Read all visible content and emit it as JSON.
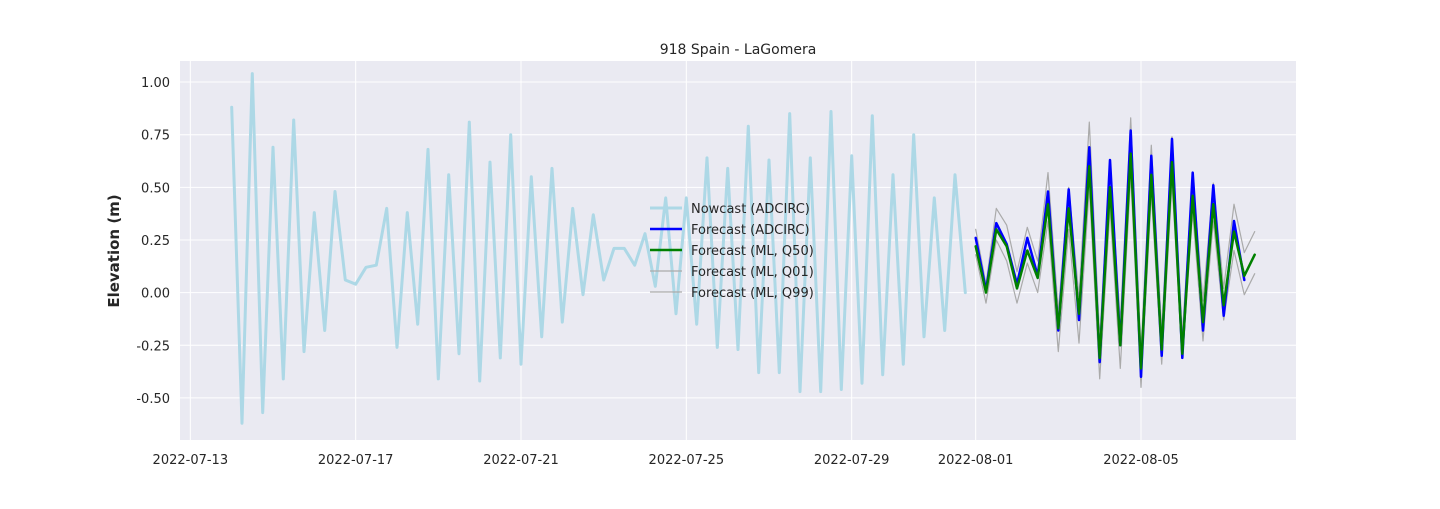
{
  "chart_data": {
    "type": "line",
    "title": "918 Spain - LaGomera",
    "xlabel": "",
    "ylabel": "Elevation (m)",
    "x_ticks": [
      "2022-07-13",
      "2022-07-17",
      "2022-07-21",
      "2022-07-25",
      "2022-07-29",
      "2022-08-01",
      "2022-08-05"
    ],
    "y_ticks": [
      "-0.50",
      "-0.25",
      "0.00",
      "0.25",
      "0.50",
      "0.75",
      "1.00"
    ],
    "xlim": [
      "2022-07-12T18:00",
      "2022-08-08T18:00"
    ],
    "ylim": [
      -0.7,
      1.1
    ],
    "grid": true,
    "legend_position": "center",
    "series": [
      {
        "name": "Nowcast (ADCIRC)",
        "color": "#add8e6",
        "values": [
          [
            "2022-07-14T00:00",
            0.88
          ],
          [
            "2022-07-14T06:00",
            -0.62
          ],
          [
            "2022-07-14T12:00",
            1.04
          ],
          [
            "2022-07-14T18:00",
            -0.57
          ],
          [
            "2022-07-15T00:00",
            0.69
          ],
          [
            "2022-07-15T06:00",
            -0.41
          ],
          [
            "2022-07-15T12:00",
            0.82
          ],
          [
            "2022-07-15T18:00",
            -0.28
          ],
          [
            "2022-07-16T00:00",
            0.38
          ],
          [
            "2022-07-16T06:00",
            -0.18
          ],
          [
            "2022-07-16T12:00",
            0.48
          ],
          [
            "2022-07-16T18:00",
            0.06
          ],
          [
            "2022-07-17T00:00",
            0.04
          ],
          [
            "2022-07-17T06:00",
            0.12
          ],
          [
            "2022-07-17T12:00",
            0.13
          ],
          [
            "2022-07-17T18:00",
            0.4
          ],
          [
            "2022-07-18T00:00",
            -0.26
          ],
          [
            "2022-07-18T06:00",
            0.38
          ],
          [
            "2022-07-18T12:00",
            -0.15
          ],
          [
            "2022-07-18T18:00",
            0.68
          ],
          [
            "2022-07-19T00:00",
            -0.41
          ],
          [
            "2022-07-19T06:00",
            0.56
          ],
          [
            "2022-07-19T12:00",
            -0.29
          ],
          [
            "2022-07-19T18:00",
            0.81
          ],
          [
            "2022-07-20T00:00",
            -0.42
          ],
          [
            "2022-07-20T06:00",
            0.62
          ],
          [
            "2022-07-20T12:00",
            -0.31
          ],
          [
            "2022-07-20T18:00",
            0.75
          ],
          [
            "2022-07-21T00:00",
            -0.34
          ],
          [
            "2022-07-21T06:00",
            0.55
          ],
          [
            "2022-07-21T12:00",
            -0.21
          ],
          [
            "2022-07-21T18:00",
            0.59
          ],
          [
            "2022-07-22T00:00",
            -0.14
          ],
          [
            "2022-07-22T06:00",
            0.4
          ],
          [
            "2022-07-22T12:00",
            -0.01
          ],
          [
            "2022-07-22T18:00",
            0.37
          ],
          [
            "2022-07-23T00:00",
            0.06
          ],
          [
            "2022-07-23T06:00",
            0.21
          ],
          [
            "2022-07-23T12:00",
            0.21
          ],
          [
            "2022-07-23T18:00",
            0.13
          ],
          [
            "2022-07-24T00:00",
            0.28
          ],
          [
            "2022-07-24T06:00",
            0.03
          ],
          [
            "2022-07-24T12:00",
            0.45
          ],
          [
            "2022-07-24T18:00",
            -0.1
          ],
          [
            "2022-07-25T00:00",
            0.45
          ],
          [
            "2022-07-25T06:00",
            -0.15
          ],
          [
            "2022-07-25T12:00",
            0.64
          ],
          [
            "2022-07-25T18:00",
            -0.26
          ],
          [
            "2022-07-26T00:00",
            0.59
          ],
          [
            "2022-07-26T06:00",
            -0.27
          ],
          [
            "2022-07-26T12:00",
            0.79
          ],
          [
            "2022-07-26T18:00",
            -0.38
          ],
          [
            "2022-07-27T00:00",
            0.63
          ],
          [
            "2022-07-27T06:00",
            -0.38
          ],
          [
            "2022-07-27T12:00",
            0.85
          ],
          [
            "2022-07-27T18:00",
            -0.47
          ],
          [
            "2022-07-28T00:00",
            0.64
          ],
          [
            "2022-07-28T06:00",
            -0.47
          ],
          [
            "2022-07-28T12:00",
            0.86
          ],
          [
            "2022-07-28T18:00",
            -0.46
          ],
          [
            "2022-07-29T00:00",
            0.65
          ],
          [
            "2022-07-29T06:00",
            -0.43
          ],
          [
            "2022-07-29T12:00",
            0.84
          ],
          [
            "2022-07-29T18:00",
            -0.39
          ],
          [
            "2022-07-30T00:00",
            0.56
          ],
          [
            "2022-07-30T06:00",
            -0.34
          ],
          [
            "2022-07-30T12:00",
            0.75
          ],
          [
            "2022-07-30T18:00",
            -0.21
          ],
          [
            "2022-07-31T00:00",
            0.45
          ],
          [
            "2022-07-31T06:00",
            -0.18
          ],
          [
            "2022-07-31T12:00",
            0.56
          ],
          [
            "2022-07-31T18:00",
            0.0
          ]
        ]
      },
      {
        "name": "Forecast (ADCIRC)",
        "color": "#0000ff",
        "values": [
          [
            "2022-08-01T00:00",
            0.26
          ],
          [
            "2022-08-01T06:00",
            0.01
          ],
          [
            "2022-08-01T12:00",
            0.33
          ],
          [
            "2022-08-01T18:00",
            0.23
          ],
          [
            "2022-08-02T00:00",
            0.04
          ],
          [
            "2022-08-02T06:00",
            0.26
          ],
          [
            "2022-08-02T12:00",
            0.08
          ],
          [
            "2022-08-02T18:00",
            0.48
          ],
          [
            "2022-08-03T00:00",
            -0.18
          ],
          [
            "2022-08-03T06:00",
            0.49
          ],
          [
            "2022-08-03T12:00",
            -0.13
          ],
          [
            "2022-08-03T18:00",
            0.69
          ],
          [
            "2022-08-04T00:00",
            -0.33
          ],
          [
            "2022-08-04T06:00",
            0.63
          ],
          [
            "2022-08-04T12:00",
            -0.25
          ],
          [
            "2022-08-04T18:00",
            0.77
          ],
          [
            "2022-08-05T00:00",
            -0.4
          ],
          [
            "2022-08-05T06:00",
            0.65
          ],
          [
            "2022-08-05T12:00",
            -0.3
          ],
          [
            "2022-08-05T18:00",
            0.73
          ],
          [
            "2022-08-06T00:00",
            -0.31
          ],
          [
            "2022-08-06T06:00",
            0.57
          ],
          [
            "2022-08-06T12:00",
            -0.18
          ],
          [
            "2022-08-06T18:00",
            0.51
          ],
          [
            "2022-08-07T00:00",
            -0.11
          ],
          [
            "2022-08-07T06:00",
            0.34
          ],
          [
            "2022-08-07T12:00",
            0.06
          ]
        ]
      },
      {
        "name": "Forecast (ML, Q50)",
        "color": "#008000",
        "values": [
          [
            "2022-08-01T00:00",
            0.22
          ],
          [
            "2022-08-01T06:00",
            0.0
          ],
          [
            "2022-08-01T12:00",
            0.3
          ],
          [
            "2022-08-01T18:00",
            0.22
          ],
          [
            "2022-08-02T00:00",
            0.02
          ],
          [
            "2022-08-02T06:00",
            0.2
          ],
          [
            "2022-08-02T12:00",
            0.07
          ],
          [
            "2022-08-02T18:00",
            0.42
          ],
          [
            "2022-08-03T00:00",
            -0.17
          ],
          [
            "2022-08-03T06:00",
            0.4
          ],
          [
            "2022-08-03T12:00",
            -0.1
          ],
          [
            "2022-08-03T18:00",
            0.6
          ],
          [
            "2022-08-04T00:00",
            -0.31
          ],
          [
            "2022-08-04T06:00",
            0.5
          ],
          [
            "2022-08-04T12:00",
            -0.25
          ],
          [
            "2022-08-04T18:00",
            0.66
          ],
          [
            "2022-08-05T00:00",
            -0.36
          ],
          [
            "2022-08-05T06:00",
            0.56
          ],
          [
            "2022-08-05T12:00",
            -0.27
          ],
          [
            "2022-08-05T18:00",
            0.62
          ],
          [
            "2022-08-06T00:00",
            -0.29
          ],
          [
            "2022-08-06T06:00",
            0.46
          ],
          [
            "2022-08-06T12:00",
            -0.14
          ],
          [
            "2022-08-06T18:00",
            0.42
          ],
          [
            "2022-08-07T00:00",
            -0.06
          ],
          [
            "2022-08-07T06:00",
            0.29
          ],
          [
            "2022-08-07T12:00",
            0.08
          ],
          [
            "2022-08-07T18:00",
            0.18
          ]
        ]
      },
      {
        "name": "Forecast (ML, Q01)",
        "color": "#aaaaaa",
        "values": [
          [
            "2022-08-01T00:00",
            0.18
          ],
          [
            "2022-08-01T06:00",
            -0.05
          ],
          [
            "2022-08-01T12:00",
            0.25
          ],
          [
            "2022-08-01T18:00",
            0.15
          ],
          [
            "2022-08-02T00:00",
            -0.05
          ],
          [
            "2022-08-02T06:00",
            0.14
          ],
          [
            "2022-08-02T12:00",
            0.0
          ],
          [
            "2022-08-02T18:00",
            0.34
          ],
          [
            "2022-08-03T00:00",
            -0.28
          ],
          [
            "2022-08-03T06:00",
            0.3
          ],
          [
            "2022-08-03T12:00",
            -0.24
          ],
          [
            "2022-08-03T18:00",
            0.5
          ],
          [
            "2022-08-04T00:00",
            -0.41
          ],
          [
            "2022-08-04T06:00",
            0.4
          ],
          [
            "2022-08-04T12:00",
            -0.36
          ],
          [
            "2022-08-04T18:00",
            0.56
          ],
          [
            "2022-08-05T00:00",
            -0.45
          ],
          [
            "2022-08-05T06:00",
            0.47
          ],
          [
            "2022-08-05T12:00",
            -0.34
          ],
          [
            "2022-08-05T18:00",
            0.52
          ],
          [
            "2022-08-06T00:00",
            -0.31
          ],
          [
            "2022-08-06T06:00",
            0.38
          ],
          [
            "2022-08-06T12:00",
            -0.23
          ],
          [
            "2022-08-06T18:00",
            0.34
          ],
          [
            "2022-08-07T00:00",
            -0.13
          ],
          [
            "2022-08-07T06:00",
            0.2
          ],
          [
            "2022-08-07T12:00",
            -0.01
          ],
          [
            "2022-08-07T18:00",
            0.09
          ]
        ]
      },
      {
        "name": "Forecast (ML, Q99)",
        "color": "#aaaaaa",
        "values": [
          [
            "2022-08-01T00:00",
            0.3
          ],
          [
            "2022-08-01T06:00",
            0.04
          ],
          [
            "2022-08-01T12:00",
            0.4
          ],
          [
            "2022-08-01T18:00",
            0.32
          ],
          [
            "2022-08-02T00:00",
            0.1
          ],
          [
            "2022-08-02T06:00",
            0.31
          ],
          [
            "2022-08-02T12:00",
            0.15
          ],
          [
            "2022-08-02T18:00",
            0.57
          ],
          [
            "2022-08-03T00:00",
            -0.09
          ],
          [
            "2022-08-03T06:00",
            0.5
          ],
          [
            "2022-08-03T12:00",
            -0.02
          ],
          [
            "2022-08-03T18:00",
            0.81
          ],
          [
            "2022-08-04T00:00",
            -0.22
          ],
          [
            "2022-08-04T06:00",
            0.62
          ],
          [
            "2022-08-04T12:00",
            -0.14
          ],
          [
            "2022-08-04T18:00",
            0.83
          ],
          [
            "2022-08-05T00:00",
            -0.27
          ],
          [
            "2022-08-05T06:00",
            0.7
          ],
          [
            "2022-08-05T12:00",
            -0.18
          ],
          [
            "2022-08-05T18:00",
            0.74
          ],
          [
            "2022-08-06T00:00",
            -0.2
          ],
          [
            "2022-08-06T06:00",
            0.56
          ],
          [
            "2022-08-06T12:00",
            -0.04
          ],
          [
            "2022-08-06T18:00",
            0.52
          ],
          [
            "2022-08-07T00:00",
            0.02
          ],
          [
            "2022-08-07T06:00",
            0.42
          ],
          [
            "2022-08-07T12:00",
            0.19
          ],
          [
            "2022-08-07T18:00",
            0.29
          ]
        ]
      }
    ]
  }
}
